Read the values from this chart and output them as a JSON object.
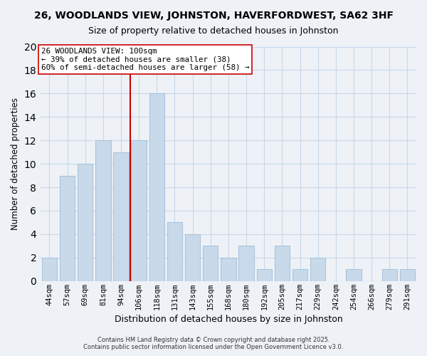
{
  "title": "26, WOODLANDS VIEW, JOHNSTON, HAVERFORDWEST, SA62 3HF",
  "subtitle": "Size of property relative to detached houses in Johnston",
  "xlabel": "Distribution of detached houses by size in Johnston",
  "ylabel": "Number of detached properties",
  "bar_labels": [
    "44sqm",
    "57sqm",
    "69sqm",
    "81sqm",
    "94sqm",
    "106sqm",
    "118sqm",
    "131sqm",
    "143sqm",
    "155sqm",
    "168sqm",
    "180sqm",
    "192sqm",
    "205sqm",
    "217sqm",
    "229sqm",
    "242sqm",
    "254sqm",
    "266sqm",
    "279sqm",
    "291sqm"
  ],
  "bar_values": [
    2,
    9,
    10,
    12,
    11,
    12,
    16,
    5,
    4,
    3,
    2,
    3,
    1,
    3,
    1,
    2,
    0,
    1,
    0,
    1,
    1
  ],
  "bar_color": "#c8daea",
  "bar_edge_color": "#a8c4dc",
  "vline_color": "#cc0000",
  "ylim": [
    0,
    20
  ],
  "yticks": [
    0,
    2,
    4,
    6,
    8,
    10,
    12,
    14,
    16,
    18,
    20
  ],
  "grid_color": "#c8d8e8",
  "background_color": "#eef2f7",
  "annotation_line1": "26 WOODLANDS VIEW: 100sqm",
  "annotation_line2": "← 39% of detached houses are smaller (38)",
  "annotation_line3": "60% of semi-detached houses are larger (58) →",
  "footer_line1": "Contains HM Land Registry data © Crown copyright and database right 2025.",
  "footer_line2": "Contains public sector information licensed under the Open Government Licence v3.0."
}
